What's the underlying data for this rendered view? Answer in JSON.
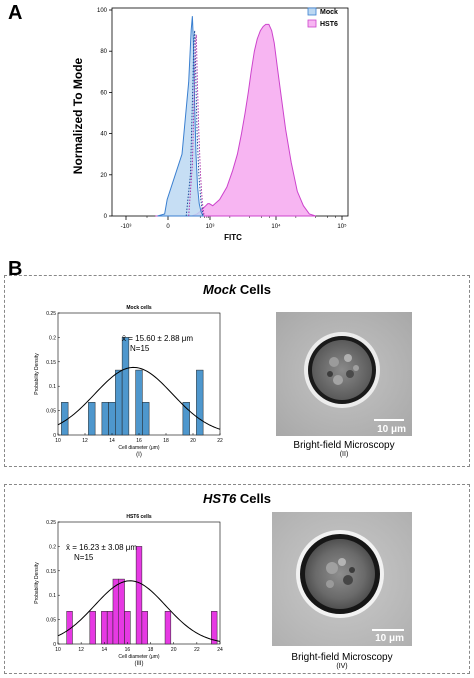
{
  "panel_a": {
    "letter": "A",
    "chart_data": {
      "type": "area",
      "xlabel": "FITC",
      "ylabel": "Normalized To Mode",
      "x_scale": "biexponential",
      "x_tick_labels": [
        "-10³",
        "0",
        "10³",
        "10⁴",
        "10⁵"
      ],
      "y_tick_labels": [
        "0",
        "20",
        "40",
        "60",
        "80",
        "100"
      ],
      "ylim": [
        0,
        100
      ],
      "legend": {
        "position": "top-right"
      },
      "series": [
        {
          "name": "Mock",
          "color": "#3a7fd0",
          "fill": "#bcd8f2",
          "peak_x": 55,
          "peak_y": 97
        },
        {
          "name": "HST6",
          "color": "#cc44cc",
          "fill": "#f7b5f2",
          "peak_x": 7000,
          "peak_y": 93
        }
      ]
    }
  },
  "panel_b": {
    "letter": "B",
    "mock": {
      "title_italic": "Mock",
      "title_rest": " Cells",
      "micro_caption": "Bright-field Microscopy",
      "micro_sub": "(II)",
      "scale_bar": "10 μm",
      "chart_data": {
        "type": "bar",
        "title": "Mock cells",
        "xlabel": "Cell diameter (μm)",
        "ylabel": "Probability Density",
        "sublabel": "(I)",
        "annotation": "x̄ = 15.60 ± 2.88 μm",
        "n_label": "N=15",
        "xlim": [
          10,
          22
        ],
        "ylim": [
          0,
          0.25
        ],
        "x_ticks": [
          10,
          12,
          14,
          16,
          18,
          20,
          22
        ],
        "y_ticks": [
          0,
          0.05,
          0.1,
          0.15,
          0.2,
          0.25
        ],
        "y_tick_labels": [
          "0",
          "0.05",
          "0.1",
          "0.15",
          "0.2",
          "0.25"
        ],
        "bar_width": 0.5,
        "bar_color": "#4e97cd",
        "bars": [
          {
            "x": 10.5,
            "value": 0.067
          },
          {
            "x": 12.5,
            "value": 0.067
          },
          {
            "x": 13.5,
            "value": 0.067
          },
          {
            "x": 14.0,
            "value": 0.067
          },
          {
            "x": 14.5,
            "value": 0.133
          },
          {
            "x": 15.0,
            "value": 0.2
          },
          {
            "x": 16.0,
            "value": 0.133
          },
          {
            "x": 16.5,
            "value": 0.067
          },
          {
            "x": 19.5,
            "value": 0.067
          },
          {
            "x": 20.5,
            "value": 0.133
          }
        ],
        "fit": {
          "mean": 15.6,
          "sd": 2.88
        }
      }
    },
    "hst6": {
      "title_italic": "HST6",
      "title_rest": " Cells",
      "micro_caption": "Bright-field Microscopy",
      "micro_sub": "(IV)",
      "scale_bar": "10 μm",
      "chart_data": {
        "type": "bar",
        "title": "HST6 cells",
        "xlabel": "Cell diameter (μm)",
        "ylabel": "Probability Density",
        "sublabel": "(III)",
        "annotation": "x̄ = 16.23 ± 3.08 μm",
        "n_label": "N=15",
        "xlim": [
          10,
          24
        ],
        "ylim": [
          0,
          0.25
        ],
        "x_ticks": [
          10,
          12,
          14,
          16,
          18,
          20,
          22,
          24
        ],
        "y_ticks": [
          0,
          0.05,
          0.1,
          0.15,
          0.2,
          0.25
        ],
        "y_tick_labels": [
          "0",
          "0.05",
          "0.1",
          "0.15",
          "0.2",
          "0.25"
        ],
        "bar_width": 0.5,
        "bar_color": "#e639e3",
        "bars": [
          {
            "x": 11.0,
            "value": 0.067
          },
          {
            "x": 13.0,
            "value": 0.067
          },
          {
            "x": 14.0,
            "value": 0.067
          },
          {
            "x": 14.5,
            "value": 0.067
          },
          {
            "x": 15.0,
            "value": 0.133
          },
          {
            "x": 15.5,
            "value": 0.133
          },
          {
            "x": 16.0,
            "value": 0.067
          },
          {
            "x": 17.0,
            "value": 0.2
          },
          {
            "x": 17.5,
            "value": 0.067
          },
          {
            "x": 19.5,
            "value": 0.067
          },
          {
            "x": 23.5,
            "value": 0.067
          }
        ],
        "fit": {
          "mean": 16.23,
          "sd": 3.08
        }
      }
    }
  }
}
